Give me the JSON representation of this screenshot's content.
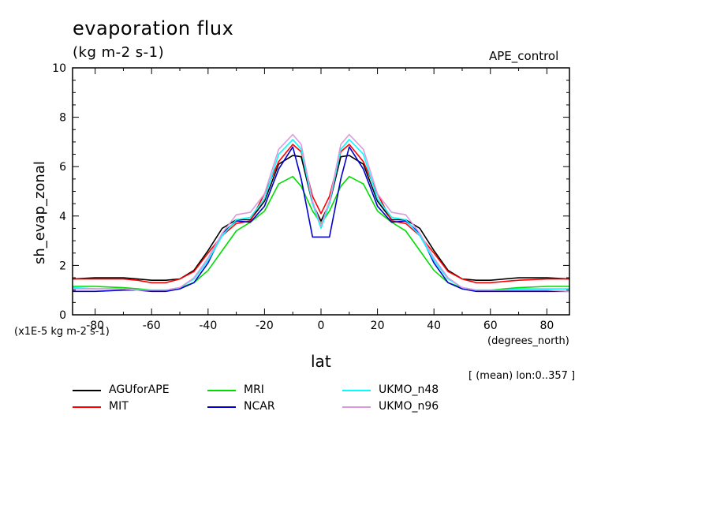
{
  "header": {
    "title": "evaporation flux",
    "units": "(kg m-2 s-1)",
    "dataset": "APE_control"
  },
  "axes": {
    "ylabel": "sh_evap_zonal",
    "xlabel": "lat",
    "x_units": "(degrees_north)",
    "y_scale_note": "(x1E-5 kg m-2 s-1)",
    "footnote": "[ (mean) lon:0..357 ]"
  },
  "chart_data": {
    "type": "line",
    "title": "evaporation flux",
    "subtitle": "(kg m-2 s-1)",
    "xlabel": "lat",
    "ylabel": "sh_evap_zonal",
    "xlim": [
      -88,
      88
    ],
    "ylim": [
      0,
      10
    ],
    "x_ticks": [
      -80,
      -60,
      -40,
      -20,
      0,
      20,
      40,
      60,
      80
    ],
    "y_ticks": [
      0,
      2,
      4,
      6,
      8,
      10
    ],
    "grid": false,
    "legend_position": "bottom",
    "x": [
      -88,
      -80,
      -70,
      -65,
      -60,
      -55,
      -50,
      -45,
      -40,
      -35,
      -30,
      -25,
      -20,
      -15,
      -10,
      -7,
      -3,
      0,
      3,
      7,
      10,
      15,
      20,
      25,
      30,
      35,
      40,
      45,
      50,
      55,
      60,
      65,
      70,
      80,
      88
    ],
    "series": [
      {
        "name": "AGUforAPE",
        "color": "#000000",
        "values": [
          1.45,
          1.5,
          1.5,
          1.45,
          1.4,
          1.4,
          1.45,
          1.8,
          2.6,
          3.5,
          3.85,
          3.85,
          4.6,
          6.1,
          6.45,
          6.4,
          4.5,
          3.8,
          4.5,
          6.4,
          6.45,
          6.1,
          4.6,
          3.85,
          3.85,
          3.5,
          2.6,
          1.8,
          1.45,
          1.4,
          1.4,
          1.45,
          1.5,
          1.5,
          1.45
        ]
      },
      {
        "name": "MIT",
        "color": "#ff0000",
        "values": [
          1.45,
          1.45,
          1.45,
          1.4,
          1.3,
          1.3,
          1.45,
          1.75,
          2.5,
          3.2,
          3.7,
          3.8,
          4.9,
          6.2,
          6.9,
          6.6,
          4.8,
          4.1,
          4.8,
          6.6,
          6.9,
          6.2,
          4.9,
          3.8,
          3.7,
          3.2,
          2.5,
          1.75,
          1.45,
          1.3,
          1.3,
          1.35,
          1.4,
          1.45,
          1.45
        ]
      },
      {
        "name": "MRI",
        "color": "#00dd00",
        "values": [
          1.15,
          1.15,
          1.1,
          1.05,
          1.0,
          1.0,
          1.1,
          1.3,
          1.8,
          2.6,
          3.4,
          3.75,
          4.2,
          5.3,
          5.6,
          5.2,
          4.2,
          3.7,
          4.2,
          5.2,
          5.6,
          5.3,
          4.2,
          3.75,
          3.4,
          2.6,
          1.8,
          1.3,
          1.1,
          1.0,
          1.0,
          1.05,
          1.1,
          1.15,
          1.15
        ]
      },
      {
        "name": "NCAR",
        "color": "#0000cc",
        "values": [
          0.95,
          0.95,
          1.0,
          1.0,
          0.95,
          0.95,
          1.05,
          1.3,
          2.1,
          3.3,
          3.8,
          3.75,
          4.4,
          5.9,
          6.8,
          5.5,
          3.15,
          3.15,
          3.15,
          5.5,
          6.8,
          5.9,
          4.4,
          3.75,
          3.8,
          3.3,
          2.1,
          1.3,
          1.05,
          0.95,
          0.95,
          0.95,
          0.95,
          0.95,
          0.95
        ]
      },
      {
        "name": "UKMO_n48",
        "color": "#00ffff",
        "values": [
          1.1,
          1.05,
          1.05,
          1.0,
          1.0,
          1.0,
          1.1,
          1.45,
          2.2,
          3.2,
          3.85,
          3.95,
          4.7,
          6.5,
          7.1,
          6.7,
          4.5,
          3.5,
          4.5,
          6.7,
          7.1,
          6.5,
          4.7,
          3.95,
          3.85,
          3.2,
          2.2,
          1.45,
          1.1,
          1.0,
          1.0,
          1.0,
          1.05,
          1.05,
          1.05
        ]
      },
      {
        "name": "UKMO_n96",
        "color": "#dd99dd",
        "values": [
          1.05,
          1.05,
          1.05,
          1.0,
          1.0,
          1.0,
          1.1,
          1.5,
          2.3,
          3.3,
          4.05,
          4.15,
          4.9,
          6.7,
          7.3,
          6.9,
          4.6,
          3.6,
          4.6,
          6.9,
          7.3,
          6.7,
          4.9,
          4.15,
          4.05,
          3.3,
          2.3,
          1.5,
          1.1,
          1.0,
          1.0,
          1.0,
          1.0,
          1.0,
          0.95
        ]
      }
    ]
  }
}
